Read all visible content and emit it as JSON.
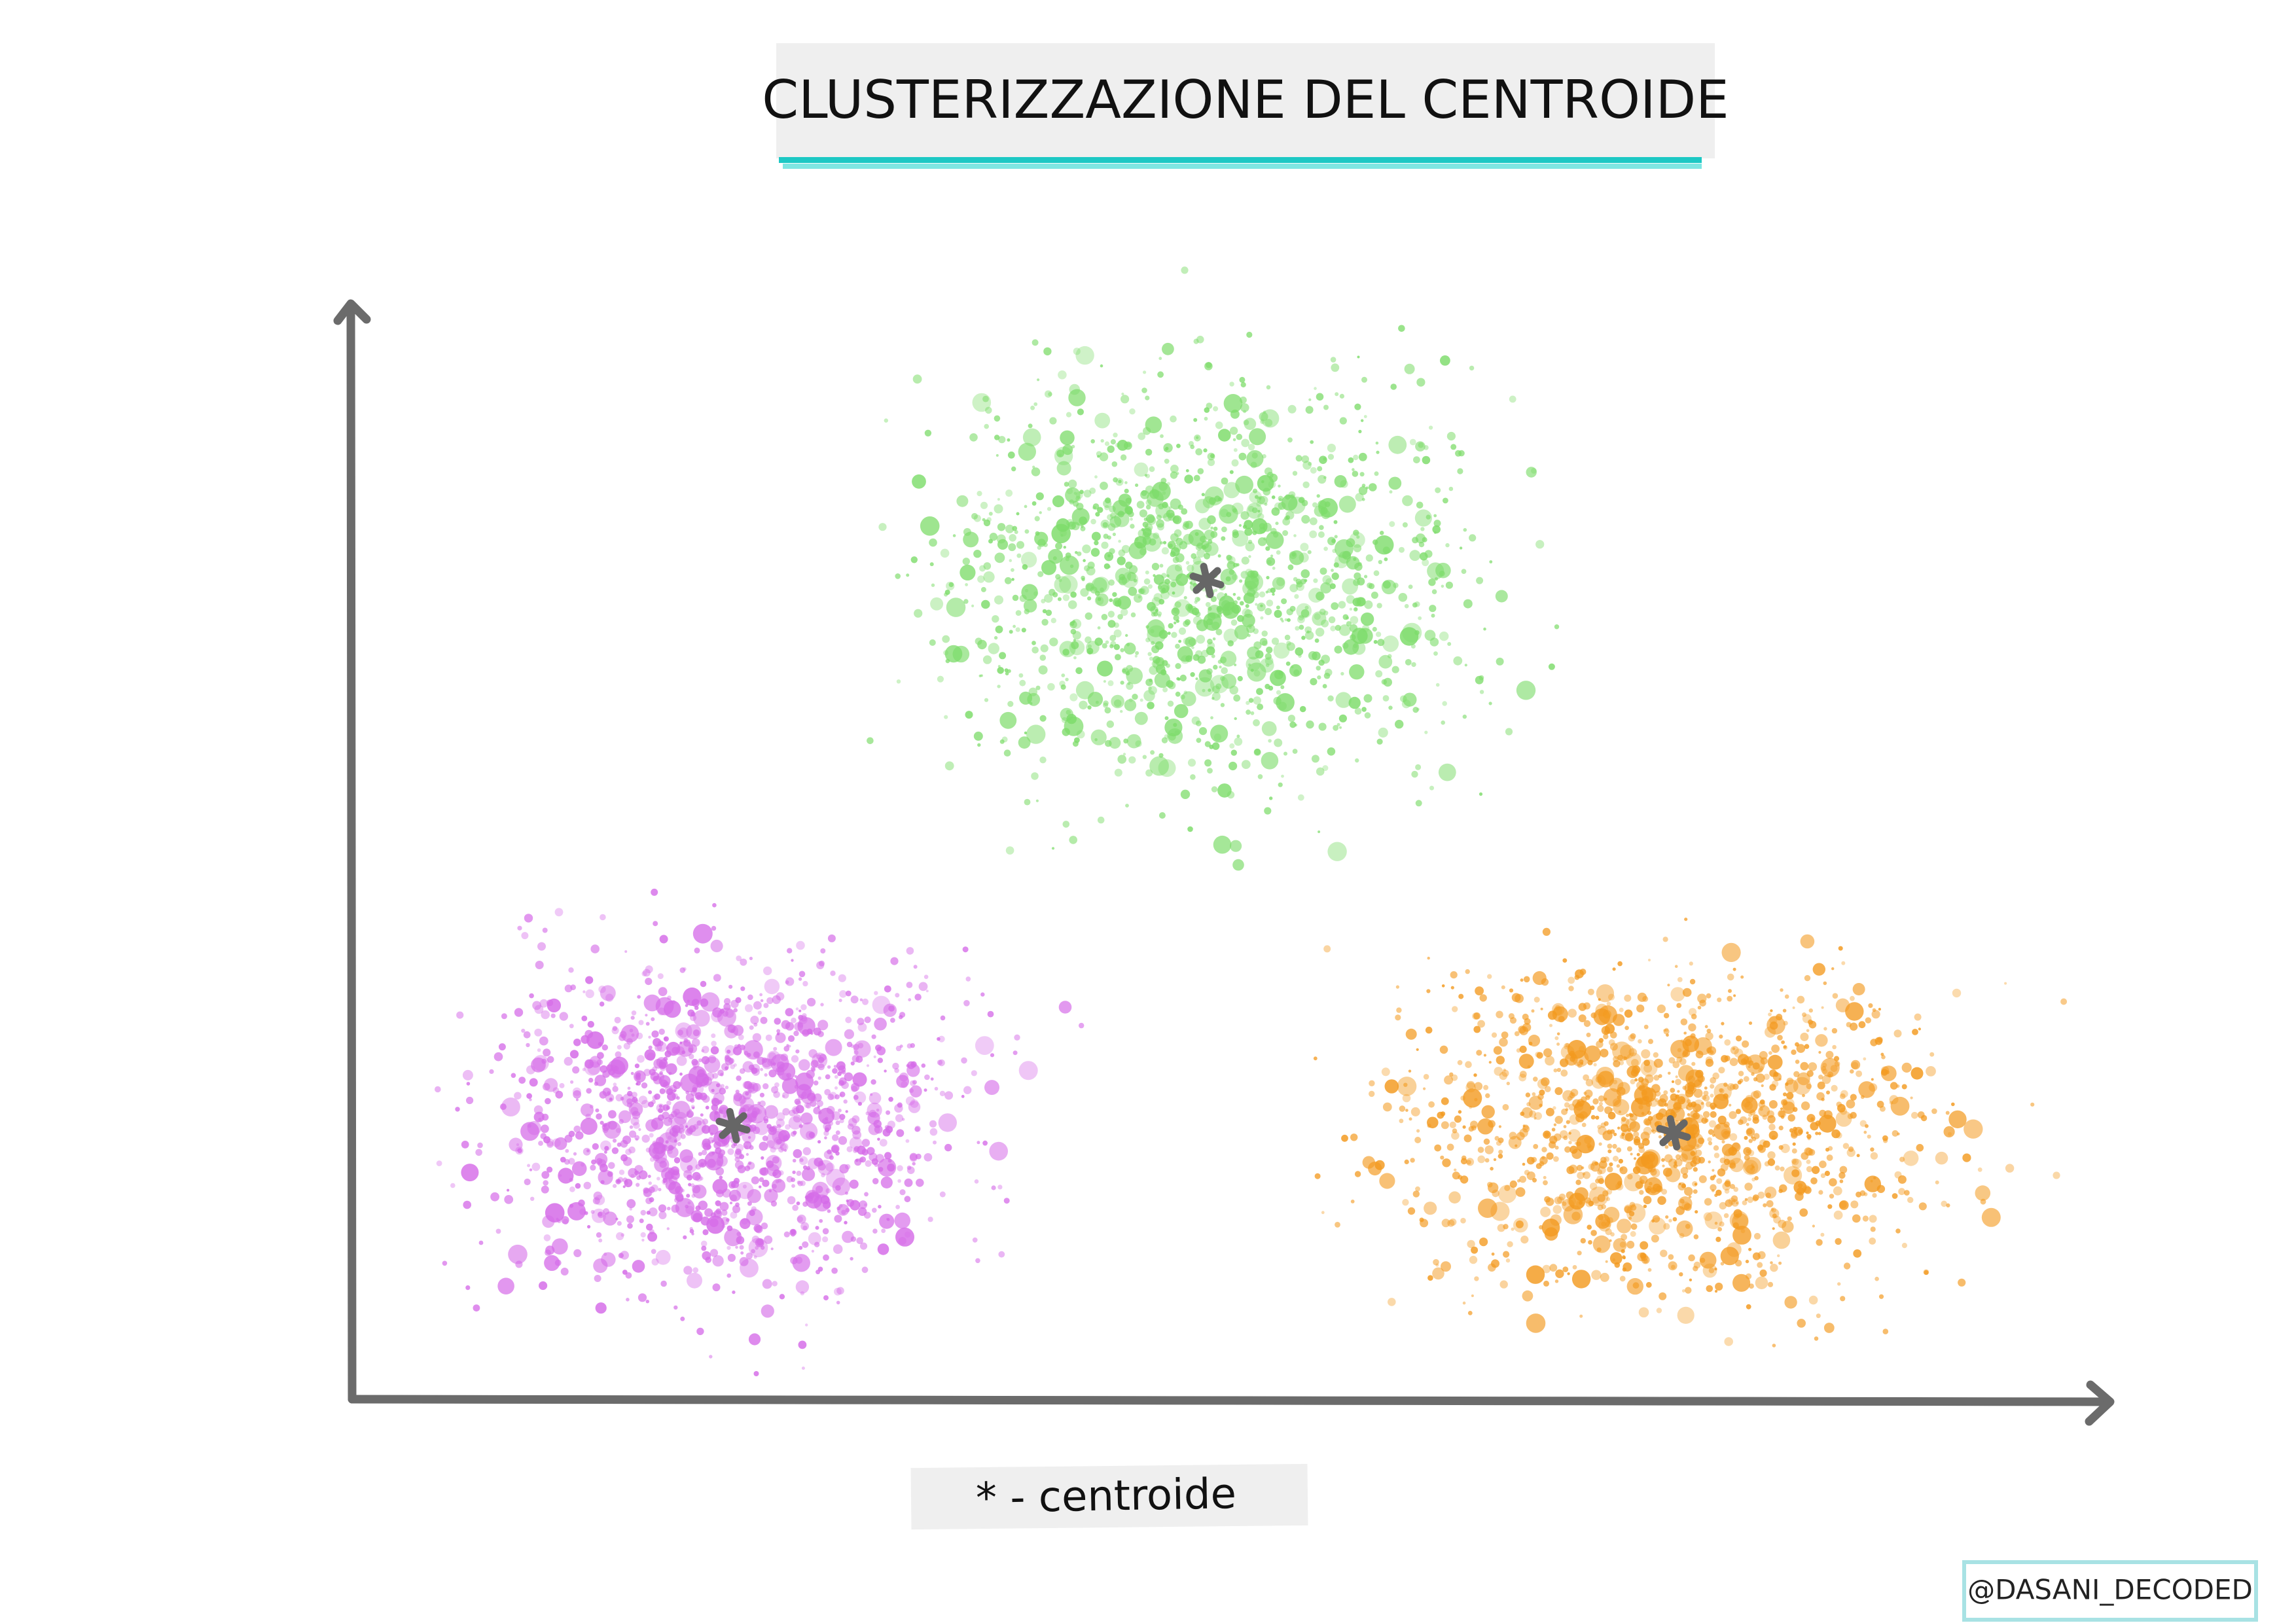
{
  "title": "CLUSTERIZZAZIONE DEL CENTROIDE",
  "legend": "* - centroide",
  "credit": "@DASANI_DECODED"
}
